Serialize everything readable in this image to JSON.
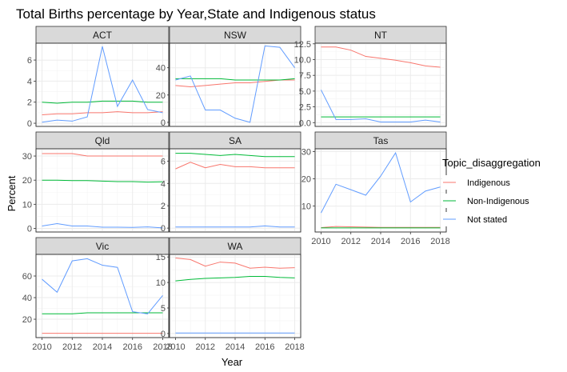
{
  "chart_data": {
    "type": "line",
    "title": "Total Births percentage by Year,State and Indigenous status",
    "xlabel": "Year",
    "ylabel": "Percent",
    "x": [
      2010,
      2011,
      2012,
      2013,
      2014,
      2015,
      2016,
      2017,
      2018
    ],
    "x_ticks": [
      2010,
      2012,
      2014,
      2016,
      2018
    ],
    "legend": {
      "title": "Topic_disaggregation",
      "position": "right",
      "entries": [
        {
          "name": "Indigenous",
          "color": "#F8766D"
        },
        {
          "name": "Non-Indigenous",
          "color": "#00BA38"
        },
        {
          "name": "Not stated",
          "color": "#619CFF"
        }
      ]
    },
    "panels": [
      {
        "name": "ACT",
        "ylim": [
          -0.3,
          7.6
        ],
        "yticks": [
          0,
          2,
          4,
          6
        ],
        "yticklabels": [
          "0",
          "2",
          "4",
          "6"
        ],
        "series": [
          {
            "name": "Indigenous",
            "values": [
              0.8,
              0.9,
              0.9,
              1.0,
              1.0,
              1.1,
              1.0,
              1.0,
              1.1
            ]
          },
          {
            "name": "Non-Indigenous",
            "values": [
              2.0,
              1.9,
              2.0,
              2.0,
              2.1,
              2.1,
              2.1,
              2.0,
              2.0
            ]
          },
          {
            "name": "Not stated",
            "values": [
              0.1,
              0.3,
              0.2,
              0.6,
              7.3,
              1.6,
              4.1,
              1.3,
              1.0
            ]
          }
        ]
      },
      {
        "name": "NSW",
        "ylim": [
          -3,
          58
        ],
        "yticks": [
          0,
          20,
          40
        ],
        "yticklabels": [
          "0",
          "20",
          "40"
        ],
        "series": [
          {
            "name": "Indigenous",
            "values": [
              27,
              26,
              27,
              28,
              29,
              29,
              30,
              31,
              31
            ]
          },
          {
            "name": "Non-Indigenous",
            "values": [
              32,
              32,
              32,
              32,
              31,
              31,
              31,
              31,
              32
            ]
          },
          {
            "name": "Not stated",
            "values": [
              31,
              34,
              9,
              9,
              3,
              0,
              56,
              55,
              40
            ]
          }
        ]
      },
      {
        "name": "NT",
        "ylim": [
          -0.6,
          12.6
        ],
        "yticks": [
          0,
          2.5,
          5,
          7.5,
          10,
          12.5
        ],
        "yticklabels": [
          "0.0",
          "2.5",
          "5.0",
          "7.5",
          "10.0",
          "12.5"
        ],
        "series": [
          {
            "name": "Indigenous",
            "values": [
              12.0,
              12.0,
              11.5,
              10.5,
              10.2,
              9.9,
              9.5,
              9.0,
              8.8
            ]
          },
          {
            "name": "Non-Indigenous",
            "values": [
              0.9,
              0.9,
              0.9,
              0.9,
              0.9,
              0.9,
              0.9,
              0.9,
              0.9
            ]
          },
          {
            "name": "Not stated",
            "values": [
              5.2,
              0.5,
              0.5,
              0.6,
              0.1,
              0.1,
              0.1,
              0.4,
              0.1
            ]
          }
        ]
      },
      {
        "name": "Qld",
        "ylim": [
          -1.5,
          33
        ],
        "yticks": [
          0,
          10,
          20,
          30
        ],
        "yticklabels": [
          "0",
          "10",
          "20",
          "30"
        ],
        "series": [
          {
            "name": "Indigenous",
            "values": [
              31,
              31,
              31,
              30,
              30,
              30,
              30,
              30,
              30
            ]
          },
          {
            "name": "Non-Indigenous",
            "values": [
              20,
              20,
              19.8,
              19.8,
              19.6,
              19.4,
              19.4,
              19.2,
              19.3
            ]
          },
          {
            "name": "Not stated",
            "values": [
              1,
              2,
              1,
              1,
              0.5,
              0.5,
              0.4,
              0.6,
              0.2
            ]
          }
        ]
      },
      {
        "name": "SA",
        "ylim": [
          -0.35,
          7.1
        ],
        "yticks": [
          0,
          2,
          4,
          6
        ],
        "yticklabels": [
          "0",
          "2",
          "4",
          "6"
        ],
        "series": [
          {
            "name": "Indigenous",
            "values": [
              5.3,
              5.9,
              5.4,
              5.7,
              5.5,
              5.5,
              5.4,
              5.4,
              5.4
            ]
          },
          {
            "name": "Non-Indigenous",
            "values": [
              6.7,
              6.7,
              6.6,
              6.5,
              6.6,
              6.5,
              6.4,
              6.4,
              6.4
            ]
          },
          {
            "name": "Not stated",
            "values": [
              0.1,
              0.1,
              0.1,
              0.1,
              0.1,
              0.1,
              0.2,
              0.1,
              0.1
            ]
          }
        ]
      },
      {
        "name": "Tas",
        "ylim": [
          0.5,
          31
        ],
        "yticks": [
          10,
          20,
          30
        ],
        "yticklabels": [
          "10",
          "20",
          "30"
        ],
        "series": [
          {
            "name": "Indigenous",
            "values": [
              2.1,
              2.5,
              2.4,
              2.3,
              2.2,
              2.2,
              2.2,
              2.2,
              2.2
            ]
          },
          {
            "name": "Non-Indigenous",
            "values": [
              2.0,
              2.0,
              2.0,
              2.0,
              2.0,
              2.0,
              2.0,
              2.0,
              2.0
            ]
          },
          {
            "name": "Not stated",
            "values": [
              7.5,
              18,
              16,
              14,
              21,
              29.5,
              11.5,
              15.5,
              17
            ]
          }
        ]
      },
      {
        "name": "Vic",
        "ylim": [
          3,
          80
        ],
        "yticks": [
          20,
          40,
          60
        ],
        "yticklabels": [
          "20",
          "40",
          "60"
        ],
        "series": [
          {
            "name": "Indigenous",
            "values": [
              7,
              7,
              7,
              7,
              7,
              7,
              7,
              7,
              7
            ]
          },
          {
            "name": "Non-Indigenous",
            "values": [
              25,
              25,
              25,
              26,
              26,
              26,
              26,
              26,
              26
            ]
          },
          {
            "name": "Not stated",
            "values": [
              57,
              45,
              74,
              76,
              70,
              68,
              27,
              25,
              42
            ]
          }
        ]
      },
      {
        "name": "WA",
        "ylim": [
          -0.8,
          15.5
        ],
        "yticks": [
          0,
          5,
          10,
          15
        ],
        "yticklabels": [
          "0",
          "5",
          "10",
          "15"
        ],
        "series": [
          {
            "name": "Indigenous",
            "values": [
              14.8,
              14.5,
              13.2,
              14.0,
              13.8,
              12.8,
              13.0,
              12.8,
              12.9
            ]
          },
          {
            "name": "Non-Indigenous",
            "values": [
              10.3,
              10.6,
              10.8,
              10.9,
              11.0,
              11.2,
              11.2,
              11.0,
              10.9
            ]
          },
          {
            "name": "Not stated",
            "values": [
              0.1,
              0.1,
              0.1,
              0.1,
              0.1,
              0.1,
              0.1,
              0.1,
              0.1
            ]
          }
        ]
      }
    ]
  }
}
